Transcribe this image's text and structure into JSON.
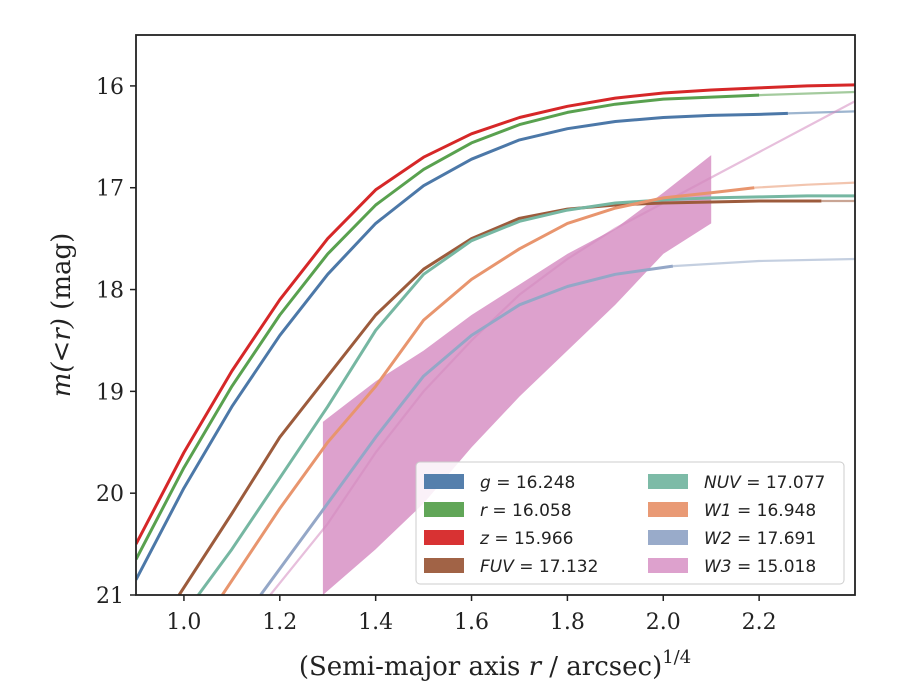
{
  "chart_data": {
    "type": "line",
    "xlabel": "(Semi-major axis r / arcsec)",
    "xlabel_sup": "1/4",
    "ylabel": "m(<r) (mag)",
    "xlim": [
      0.9,
      2.4
    ],
    "ylim": [
      21.0,
      15.5
    ],
    "y_inverted": true,
    "x_ticks": [
      1.0,
      1.2,
      1.4,
      1.6,
      1.8,
      2.0,
      2.2
    ],
    "x_tick_labels": [
      "1.0",
      "1.2",
      "1.4",
      "1.6",
      "1.8",
      "2.0",
      "2.2"
    ],
    "y_ticks": [
      16,
      17,
      18,
      19,
      20,
      21
    ],
    "y_tick_labels": [
      "16",
      "17",
      "18",
      "19",
      "20",
      "21"
    ],
    "grid": false,
    "legend_placement": "lower-right",
    "legend_columns": 2,
    "series": [
      {
        "key": "g",
        "name": "g = 16.248",
        "color": "#4c78a8",
        "x": [
          0.9,
          1.0,
          1.1,
          1.2,
          1.3,
          1.4,
          1.5,
          1.6,
          1.7,
          1.8,
          1.9,
          2.0,
          2.1,
          2.2,
          2.26
        ],
        "y": [
          20.85,
          19.95,
          19.15,
          18.45,
          17.85,
          17.35,
          16.98,
          16.72,
          16.53,
          16.42,
          16.35,
          16.31,
          16.29,
          16.28,
          16.27
        ],
        "extend_x": [
          2.26,
          2.4
        ],
        "extend_y": [
          16.27,
          16.25
        ]
      },
      {
        "key": "r",
        "name": "r = 16.058",
        "color": "#59a14f",
        "x": [
          0.9,
          1.0,
          1.1,
          1.2,
          1.3,
          1.4,
          1.5,
          1.6,
          1.7,
          1.8,
          1.9,
          2.0,
          2.1,
          2.2
        ],
        "y": [
          20.65,
          19.75,
          18.95,
          18.25,
          17.65,
          17.17,
          16.82,
          16.56,
          16.38,
          16.26,
          16.18,
          16.13,
          16.11,
          16.09
        ],
        "extend_x": [
          2.2,
          2.4
        ],
        "extend_y": [
          16.09,
          16.06
        ]
      },
      {
        "key": "z",
        "name": "z = 15.966",
        "color": "#d62728",
        "x": [
          0.9,
          1.0,
          1.1,
          1.2,
          1.3,
          1.4,
          1.5,
          1.6,
          1.7,
          1.8,
          1.9,
          2.0,
          2.1,
          2.2,
          2.3,
          2.4
        ],
        "y": [
          20.5,
          19.6,
          18.8,
          18.1,
          17.5,
          17.02,
          16.7,
          16.47,
          16.31,
          16.2,
          16.12,
          16.07,
          16.04,
          16.02,
          16.0,
          15.99
        ]
      },
      {
        "key": "FUV",
        "name": "FUV = 17.132",
        "color": "#9c5b3c",
        "x": [
          0.99,
          1.1,
          1.2,
          1.3,
          1.4,
          1.5,
          1.6,
          1.7,
          1.8,
          1.9,
          2.0,
          2.1,
          2.2,
          2.33
        ],
        "y": [
          21.0,
          20.2,
          19.45,
          18.85,
          18.25,
          17.8,
          17.5,
          17.3,
          17.21,
          17.17,
          17.15,
          17.14,
          17.13,
          17.13
        ],
        "extend_x": [
          2.33,
          2.4
        ],
        "extend_y": [
          17.13,
          17.13
        ]
      },
      {
        "key": "NUV",
        "name": "NUV = 17.077",
        "color": "#76b7a2",
        "x": [
          1.03,
          1.1,
          1.2,
          1.3,
          1.4,
          1.5,
          1.6,
          1.7,
          1.8,
          1.9,
          2.0,
          2.1,
          2.2,
          2.3,
          2.4
        ],
        "y": [
          21.0,
          20.55,
          19.85,
          19.15,
          18.4,
          17.85,
          17.52,
          17.33,
          17.22,
          17.15,
          17.12,
          17.1,
          17.09,
          17.08,
          17.08
        ]
      },
      {
        "key": "W1",
        "name": "W1 = 16.948",
        "color": "#e8956e",
        "x": [
          1.08,
          1.2,
          1.3,
          1.4,
          1.5,
          1.6,
          1.7,
          1.8,
          1.9,
          2.0,
          2.1,
          2.19
        ],
        "y": [
          21.0,
          20.15,
          19.5,
          18.95,
          18.3,
          17.9,
          17.6,
          17.35,
          17.2,
          17.1,
          17.05,
          17.0
        ],
        "extend_x": [
          2.19,
          2.3,
          2.4
        ],
        "extend_y": [
          17.0,
          16.97,
          16.95
        ]
      },
      {
        "key": "W2",
        "name": "W2 = 17.691",
        "color": "#94a7c7",
        "x": [
          1.16,
          1.3,
          1.4,
          1.5,
          1.6,
          1.7,
          1.8,
          1.9,
          2.02
        ],
        "y": [
          21.0,
          20.1,
          19.45,
          18.85,
          18.45,
          18.15,
          17.97,
          17.85,
          17.77
        ],
        "extend_x": [
          2.02,
          2.2,
          2.4
        ],
        "extend_y": [
          17.77,
          17.72,
          17.7
        ]
      },
      {
        "key": "W3",
        "name": "W3 = 15.018",
        "color": "#d48ac0",
        "extend_x": [
          1.18,
          1.3,
          1.4,
          1.5,
          1.6,
          1.7,
          1.8,
          1.9,
          2.0,
          2.1,
          2.2,
          2.3,
          2.4
        ],
        "extend_y": [
          21.0,
          20.3,
          19.6,
          19.0,
          18.5,
          18.05,
          17.7,
          17.4,
          17.15,
          16.9,
          16.65,
          16.4,
          16.15
        ],
        "band_x": [
          1.29,
          1.4,
          1.5,
          1.6,
          1.7,
          1.8,
          1.9,
          2.0,
          2.1
        ],
        "band_upper": [
          19.3,
          18.9,
          18.6,
          18.25,
          17.95,
          17.65,
          17.4,
          17.05,
          16.68
        ],
        "band_lower": [
          21.0,
          20.55,
          20.1,
          19.55,
          19.05,
          18.6,
          18.15,
          17.65,
          17.35
        ]
      }
    ],
    "legend_layout": [
      [
        "g",
        "NUV"
      ],
      [
        "r",
        "W1"
      ],
      [
        "z",
        "W2"
      ],
      [
        "FUV",
        "W3"
      ]
    ]
  }
}
